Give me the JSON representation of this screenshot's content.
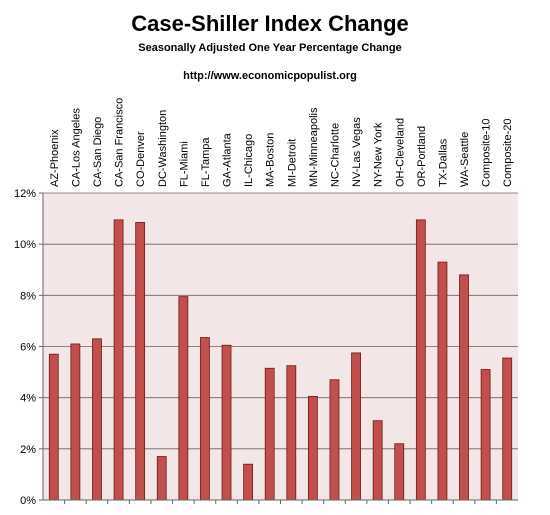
{
  "chart_data": {
    "type": "bar",
    "title": "Case-Shiller Index Change",
    "subtitle": "Seasonally Adjusted One Year Percentage Change",
    "source": "http://www.economicpopulist.org",
    "xlabel": "",
    "ylabel": "",
    "ylim": [
      0,
      12
    ],
    "yticks": [
      0,
      2,
      4,
      6,
      8,
      10,
      12
    ],
    "ytick_suffix": "%",
    "grid": true,
    "legend": "none",
    "colors": {
      "bar_fill": "#c0504d",
      "bar_stroke": "#6e1a18",
      "plot_bg": "#f2e6e6",
      "gridline": "#7a5a5a",
      "axis": "#666666"
    },
    "categories": [
      "AZ-Phoenix",
      "CA-Los Angeles",
      "CA-San Diego",
      "CA-San Francisco",
      "CO-Denver",
      "DC-Washington",
      "FL-Miami",
      "FL-Tampa",
      "GA-Atlanta",
      "IL-Chicago",
      "MA-Boston",
      "MI-Detroit",
      "MN-Minneapolis",
      "NC-Charlotte",
      "NV-Las Vegas",
      "NY-New York",
      "OH-Cleveland",
      "OR-Portland",
      "TX-Dallas",
      "WA-Seattle",
      "Composite-10",
      "Composite-20"
    ],
    "values": [
      5.7,
      6.1,
      6.3,
      10.95,
      10.85,
      1.7,
      7.95,
      6.35,
      6.05,
      1.4,
      5.15,
      5.25,
      4.05,
      4.7,
      5.75,
      3.1,
      2.2,
      10.95,
      9.3,
      8.8,
      5.1,
      5.55
    ]
  }
}
